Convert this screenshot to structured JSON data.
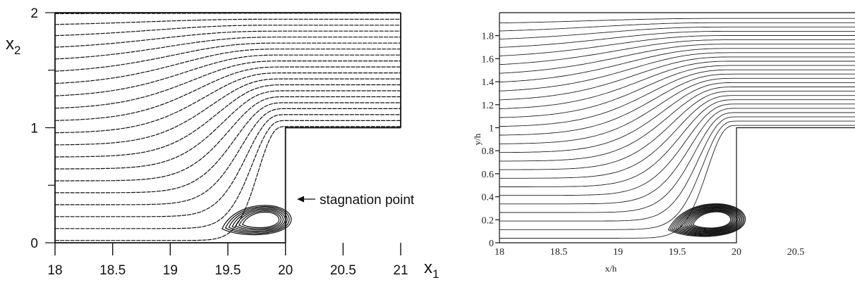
{
  "chart_data": [
    {
      "type": "line",
      "title": "",
      "xlabel": "x1",
      "ylabel": "x2",
      "xlim": [
        18,
        21
      ],
      "ylim": [
        0,
        2
      ],
      "x_ticks": [
        18,
        18.5,
        19,
        19.5,
        20,
        20.5,
        21
      ],
      "x_tick_labels": [
        "18",
        "18.5",
        "19",
        "19.5",
        "20",
        "20.5",
        "21"
      ],
      "y_ticks": [
        0,
        1,
        2
      ],
      "y_tick_labels": [
        "0",
        "1",
        "2"
      ],
      "grid": false,
      "geometry": {
        "step_x": 20,
        "step_height": 1,
        "channel_height": 2
      },
      "streamlines": {
        "count": 20,
        "inlet_y_first": 0.02,
        "inlet_y_last": 1.99
      },
      "recirculation_bubble": {
        "x_range": [
          19.4,
          20.0
        ],
        "y_range": [
          0.06,
          0.32
        ],
        "center": [
          19.75,
          0.2
        ]
      },
      "annotation": {
        "text": "stagnation point",
        "target": [
          20.0,
          0.4
        ]
      }
    },
    {
      "type": "line",
      "title": "",
      "xlabel": "x/h",
      "ylabel": "y/h",
      "xlim": [
        18,
        21
      ],
      "ylim": [
        0,
        2
      ],
      "x_ticks": [
        18,
        18.5,
        19,
        19.5,
        20,
        20.5
      ],
      "x_tick_labels": [
        "18",
        "18.5",
        "19",
        "19.5",
        "20",
        "20.5"
      ],
      "y_ticks": [
        0,
        0.2,
        0.4,
        0.6,
        0.8,
        1,
        1.2,
        1.4,
        1.6,
        1.8
      ],
      "y_tick_labels": [
        "0",
        "0.2",
        "0.4",
        "0.6",
        "0.8",
        "1",
        "1.2",
        "1.4",
        "1.6",
        "1.8"
      ],
      "grid": false,
      "geometry": {
        "step_x": 20,
        "step_height": 1,
        "channel_height": 2
      },
      "streamlines": {
        "count": 26,
        "inlet_y_first": 0.04,
        "inlet_y_last": 1.9
      },
      "recirculation_bubble": {
        "x_range": [
          19.35,
          20.0
        ],
        "y_range": [
          0.07,
          0.36
        ],
        "center": [
          19.75,
          0.2
        ]
      }
    }
  ]
}
